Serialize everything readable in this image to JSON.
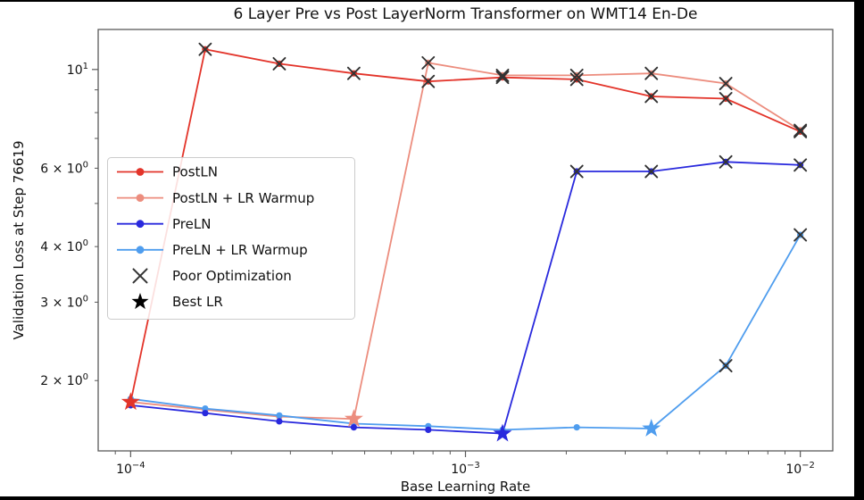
{
  "figure": {
    "background": "#ffffff",
    "frame_color": "#000000",
    "spine_color": "#5a5a5a",
    "text_color": "#111111"
  },
  "chart_data": {
    "type": "line",
    "title": "6 Layer Pre vs Post LayerNorm Transformer on WMT14 En-De",
    "xlabel": "Base Learning Rate",
    "ylabel": "Validation Loss at Step 76619",
    "x_scale": "log",
    "y_scale": "log",
    "xlim": [
      8e-05,
      0.0125
    ],
    "ylim": [
      1.39,
      12.3
    ],
    "grid": false,
    "x": [
      0.0001,
      0.000167,
      0.000278,
      0.000464,
      0.000774,
      0.00129,
      0.00215,
      0.00359,
      0.00599,
      0.01
    ],
    "series": [
      {
        "name": "PostLN",
        "color": "#e3342a",
        "values": [
          1.79,
          11.1,
          10.3,
          9.8,
          9.4,
          9.6,
          9.5,
          8.7,
          8.6,
          7.25
        ],
        "markers": [
          "star",
          "x",
          "x",
          "x",
          "x",
          "x",
          "x",
          "x",
          "x",
          "x"
        ]
      },
      {
        "name": "PostLN + LR Warmup",
        "color": "#ec8d7e",
        "values": [
          1.79,
          1.72,
          1.66,
          1.64,
          10.35,
          9.7,
          9.7,
          9.8,
          9.3,
          7.3
        ],
        "markers": [
          "dot",
          "dot",
          "dot",
          "star",
          "x",
          "x",
          "x",
          "x",
          "x",
          "x"
        ]
      },
      {
        "name": "PreLN",
        "color": "#2929dd",
        "values": [
          1.76,
          1.69,
          1.62,
          1.57,
          1.55,
          1.52,
          5.9,
          5.9,
          6.2,
          6.1
        ],
        "markers": [
          "dot",
          "dot",
          "dot",
          "dot",
          "dot",
          "star",
          "x",
          "x",
          "x",
          "x"
        ]
      },
      {
        "name": "PreLN + LR Warmup",
        "color": "#4f9dee",
        "values": [
          1.82,
          1.73,
          1.67,
          1.6,
          1.58,
          1.55,
          1.57,
          1.56,
          2.16,
          4.25
        ],
        "markers": [
          "dot",
          "dot",
          "dot",
          "dot",
          "dot",
          "dot",
          "dot",
          "star",
          "x",
          "x"
        ]
      }
    ],
    "x_ticks": [
      {
        "value": 0.0001,
        "prefix": "10",
        "sup": "−4"
      },
      {
        "value": 0.001,
        "prefix": "10",
        "sup": "−3"
      },
      {
        "value": 0.01,
        "prefix": "10",
        "sup": "−2"
      }
    ],
    "x_minor_ticks": [
      9e-05,
      0.0002,
      0.0003,
      0.0004,
      0.0005,
      0.0006,
      0.0007,
      0.0008,
      0.0009,
      0.002,
      0.003,
      0.004,
      0.005,
      0.006,
      0.007,
      0.008,
      0.009
    ],
    "y_ticks": [
      {
        "value": 10,
        "prefix": "10",
        "sup": "1"
      },
      {
        "value": 6,
        "prefix": "6 × 10",
        "sup": "0"
      },
      {
        "value": 4,
        "prefix": "4 × 10",
        "sup": "0"
      },
      {
        "value": 3,
        "prefix": "3 × 10",
        "sup": "0"
      },
      {
        "value": 2,
        "prefix": "2 × 10",
        "sup": "0"
      }
    ],
    "y_minor_ticks": [
      5,
      7,
      8,
      9
    ],
    "marker_color_x": "#333333",
    "legend": {
      "position": "center-left",
      "entries": [
        {
          "label": "PostLN",
          "type": "series",
          "color": "#e3342a"
        },
        {
          "label": "PostLN + LR Warmup",
          "type": "series",
          "color": "#ec8d7e"
        },
        {
          "label": "PreLN",
          "type": "series",
          "color": "#2929dd"
        },
        {
          "label": "PreLN + LR Warmup",
          "type": "series",
          "color": "#4f9dee"
        },
        {
          "label": "Poor Optimization",
          "type": "x",
          "color": "#333333"
        },
        {
          "label": "Best LR",
          "type": "star",
          "color": "#000000"
        }
      ]
    }
  }
}
